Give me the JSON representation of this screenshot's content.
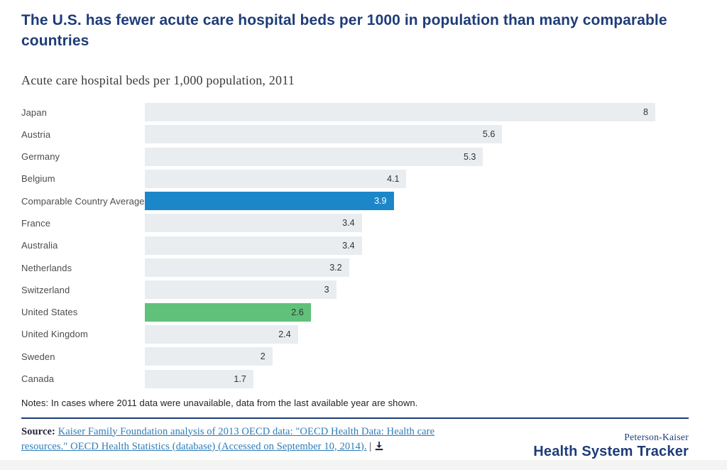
{
  "header": {
    "title": "The U.S. has fewer acute care hospital beds per 1000 in population than many comparable countries",
    "subtitle": "Acute care hospital beds per 1,000 population, 2011"
  },
  "notes": "Notes: In cases where 2011 data were unavailable, data from the last available year are shown.",
  "source": {
    "label": "Source:",
    "link_text": "Kaiser Family Foundation analysis of 2013 OECD data: \"OECD Health Data: Health care resources.\" OECD Health Statistics (database) (Accessed on September 10, 2014).",
    "separator": "|"
  },
  "branding": {
    "line1": "Peterson-Kaiser",
    "line2": "Health System Tracker"
  },
  "colors": {
    "title_navy": "#1e3c78",
    "bar_default": "#e9edf0",
    "bar_highlight_blue": "#1b87c9",
    "bar_highlight_green": "#60c17a",
    "link_blue": "#2d7cb7"
  },
  "chart_data": {
    "type": "bar",
    "orientation": "horizontal",
    "title": "Acute care hospital beds per 1,000 population, 2011",
    "xlabel": "",
    "ylabel": "",
    "xlim": [
      0,
      8
    ],
    "grid": false,
    "legend": "none",
    "value_labels_position": "inside-end",
    "categories": [
      "Japan",
      "Austria",
      "Germany",
      "Belgium",
      "Comparable Country Average",
      "France",
      "Australia",
      "Netherlands",
      "Switzerland",
      "United States",
      "United Kingdom",
      "Sweden",
      "Canada"
    ],
    "values": [
      8,
      5.6,
      5.3,
      4.1,
      3.9,
      3.4,
      3.4,
      3.2,
      3,
      2.6,
      2.4,
      2,
      1.7
    ],
    "rows": [
      {
        "label": "Japan",
        "value": 8,
        "display": "8",
        "highlight": "default"
      },
      {
        "label": "Austria",
        "value": 5.6,
        "display": "5.6",
        "highlight": "default"
      },
      {
        "label": "Germany",
        "value": 5.3,
        "display": "5.3",
        "highlight": "default"
      },
      {
        "label": "Belgium",
        "value": 4.1,
        "display": "4.1",
        "highlight": "default"
      },
      {
        "label": "Comparable Country Average",
        "value": 3.9,
        "display": "3.9",
        "highlight": "blue"
      },
      {
        "label": "France",
        "value": 3.4,
        "display": "3.4",
        "highlight": "default"
      },
      {
        "label": "Australia",
        "value": 3.4,
        "display": "3.4",
        "highlight": "default"
      },
      {
        "label": "Netherlands",
        "value": 3.2,
        "display": "3.2",
        "highlight": "default"
      },
      {
        "label": "Switzerland",
        "value": 3,
        "display": "3",
        "highlight": "default"
      },
      {
        "label": "United States",
        "value": 2.6,
        "display": "2.6",
        "highlight": "green"
      },
      {
        "label": "United Kingdom",
        "value": 2.4,
        "display": "2.4",
        "highlight": "default"
      },
      {
        "label": "Sweden",
        "value": 2,
        "display": "2",
        "highlight": "default"
      },
      {
        "label": "Canada",
        "value": 1.7,
        "display": "1.7",
        "highlight": "default"
      }
    ]
  }
}
